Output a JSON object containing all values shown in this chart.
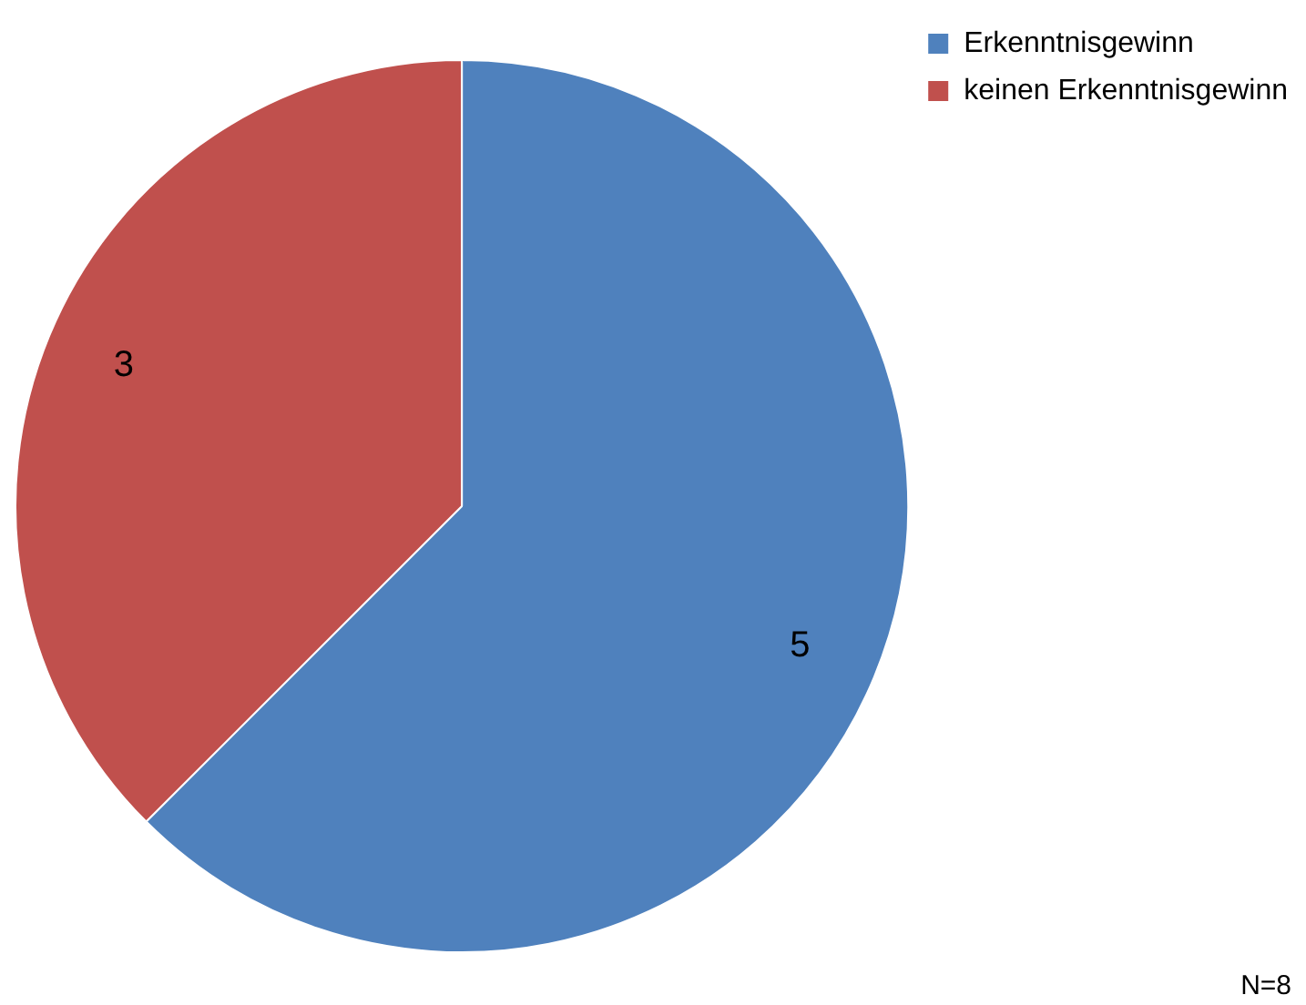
{
  "chart_data": {
    "type": "pie",
    "categories": [
      "Erkenntnisgewinn",
      "keinen Erkenntnisgewinn"
    ],
    "values": [
      5,
      3
    ],
    "colors": [
      "#4f81bd",
      "#c0504d"
    ],
    "data_labels": true,
    "legend": "top right",
    "annotations": [
      "N=8"
    ]
  }
}
